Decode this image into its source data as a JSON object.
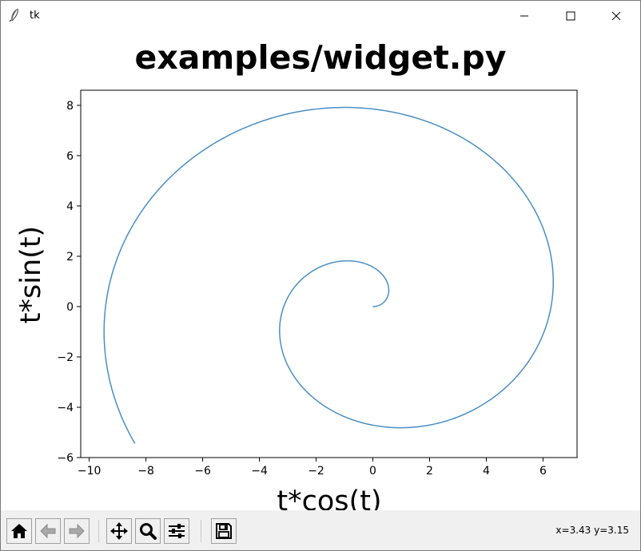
{
  "window": {
    "title": "tk",
    "controls": [
      "minimize-icon",
      "maximize-icon",
      "close-icon"
    ]
  },
  "toolbar": {
    "buttons": [
      {
        "name": "home-button",
        "icon": "home-icon"
      },
      {
        "name": "back-button",
        "icon": "arrow-left-icon"
      },
      {
        "name": "forward-button",
        "icon": "arrow-right-icon"
      },
      {
        "name": "pan-button",
        "icon": "move-icon"
      },
      {
        "name": "zoom-button",
        "icon": "magnifier-icon"
      },
      {
        "name": "subplots-button",
        "icon": "sliders-icon"
      },
      {
        "name": "save-button",
        "icon": "floppy-disk-icon"
      }
    ],
    "coordinates": "x=3.43 y=3.15"
  },
  "chart_data": {
    "type": "line",
    "title": "examples/widget.py",
    "xlabel": "t*cos(t)",
    "ylabel": "t*sin(t)",
    "xlim": [
      -10.3,
      7.2
    ],
    "ylim": [
      -6.0,
      8.6
    ],
    "xticks": [
      -10,
      -8,
      -6,
      -4,
      -2,
      0,
      2,
      4,
      6
    ],
    "yticks": [
      -6,
      -4,
      -2,
      0,
      2,
      4,
      6,
      8
    ],
    "xtick_labels": [
      "−10",
      "−8",
      "−6",
      "−4",
      "−2",
      "0",
      "2",
      "4",
      "6"
    ],
    "ytick_labels": [
      "−6",
      "−4",
      "−2",
      "0",
      "2",
      "4",
      "6",
      "8"
    ],
    "grid": false,
    "line_color": "#4a8fc4",
    "series": [
      {
        "parametric": "x = t*cos(t), y = t*sin(t)",
        "t_range": [
          0,
          10
        ]
      }
    ]
  }
}
